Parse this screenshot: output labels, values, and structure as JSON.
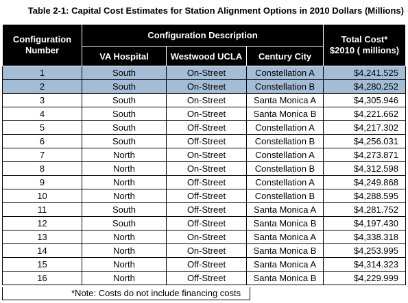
{
  "caption": "Table 2-1: Capital Cost Estimates for Station Alignment Options in 2010 Dollars (Millions)",
  "header": {
    "config_number": [
      "Configuration",
      "Number"
    ],
    "group": "Configuration Description",
    "va_hospital": "VA Hospital",
    "westwood": "Westwood UCLA",
    "century_city": "Century City",
    "total_cost": [
      "Total Cost*",
      "$2010  ( millions)"
    ]
  },
  "highlight_color": "#a4bdd6",
  "rows": [
    {
      "n": "1",
      "va": "South",
      "ww": "On-Street",
      "cc": "Constellation A",
      "cost": "$4,241.525",
      "highlight": true
    },
    {
      "n": "2",
      "va": "South",
      "ww": "On-Street",
      "cc": "Constellation B",
      "cost": "$4,280.252",
      "highlight": true
    },
    {
      "n": "3",
      "va": "South",
      "ww": "On-Street",
      "cc": "Santa Monica A",
      "cost": "$4,305.946",
      "highlight": false
    },
    {
      "n": "4",
      "va": "South",
      "ww": "On-Street",
      "cc": "Santa Monica B",
      "cost": "$4,221.662",
      "highlight": false
    },
    {
      "n": "5",
      "va": "South",
      "ww": "Off-Street",
      "cc": "Constellation A",
      "cost": "$4,217.302",
      "highlight": false
    },
    {
      "n": "6",
      "va": "South",
      "ww": "Off-Street",
      "cc": "Constellation B",
      "cost": "$4,256.031",
      "highlight": false
    },
    {
      "n": "7",
      "va": "North",
      "ww": "On-Street",
      "cc": "Constellation A",
      "cost": "$4,273.871",
      "highlight": false
    },
    {
      "n": "8",
      "va": "North",
      "ww": "On-Street",
      "cc": "Constellation B",
      "cost": "$4,312.598",
      "highlight": false
    },
    {
      "n": "9",
      "va": "North",
      "ww": "Off-Street",
      "cc": "Constellation A",
      "cost": "$4,249.868",
      "highlight": false
    },
    {
      "n": "10",
      "va": "North",
      "ww": "Off-Street",
      "cc": "Constellation B",
      "cost": "$4,288.595",
      "highlight": false
    },
    {
      "n": "11",
      "va": "South",
      "ww": "Off-Street",
      "cc": "Santa Monica A",
      "cost": "$4,281.752",
      "highlight": false
    },
    {
      "n": "12",
      "va": "South",
      "ww": "Off-Street",
      "cc": "Santa Monica B",
      "cost": "$4,197.430",
      "highlight": false
    },
    {
      "n": "13",
      "va": "North",
      "ww": "On-Street",
      "cc": "Santa Monica A",
      "cost": "$4,338.318",
      "highlight": false
    },
    {
      "n": "14",
      "va": "North",
      "ww": "On-Street",
      "cc": "Santa Monica B",
      "cost": "$4,253.995",
      "highlight": false
    },
    {
      "n": "15",
      "va": "North",
      "ww": "Off-Street",
      "cc": "Santa Monica A",
      "cost": "$4,314.323",
      "highlight": false
    },
    {
      "n": "16",
      "va": "North",
      "ww": "Off-Street",
      "cc": "Santa Monica B",
      "cost": "$4,229.999",
      "highlight": false
    }
  ],
  "note": "*Note: Costs do not include financing costs"
}
